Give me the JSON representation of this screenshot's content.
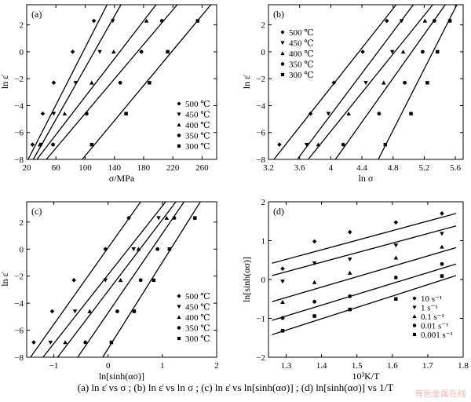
{
  "caption": "(a) ln ε̇ vs σ ; (b) ln ε̇ vs ln σ ; (c) ln ε̇ vs ln[sinh(ασ)] ; (d) ln[sinh(ασ)] vs 1/T",
  "watermark": "有色金属在线",
  "chart_data": [
    {
      "type": "scatter",
      "panel": "(a)",
      "xlabel": "σ/MPa",
      "ylabel": "ln ε̇",
      "xlim": [
        20,
        280
      ],
      "ylim": [
        -8,
        3.5
      ],
      "xticks": [
        20,
        60,
        100,
        140,
        180,
        220,
        260
      ],
      "yticks": [
        -8,
        -6,
        -4,
        -2,
        0,
        2
      ],
      "grid": false,
      "legend_position": "bottom-right",
      "series": [
        {
          "name": "500 ℃",
          "marker": "diamond",
          "x": [
            28,
            42,
            57,
            83,
            112
          ],
          "y": [
            -6.9,
            -4.6,
            -2.3,
            0.0,
            2.3
          ],
          "fit": [
            [
              22,
              -8.0
            ],
            [
              130,
              3.5
            ]
          ]
        },
        {
          "name": "450 ℃",
          "marker": "triangle-down",
          "x": [
            40,
            57,
            87,
            120,
            138
          ],
          "y": [
            -6.9,
            -4.6,
            -2.3,
            0.0,
            2.3
          ],
          "fit": [
            [
              29,
              -8.0
            ],
            [
              149,
              3.5
            ]
          ]
        },
        {
          "name": "400 ℃",
          "marker": "triangle-up",
          "x": [
            38,
            72,
            109,
            139,
            184
          ],
          "y": [
            -6.9,
            -4.6,
            -2.3,
            0.0,
            2.3
          ],
          "fit": [
            [
              34,
              -8.0
            ],
            [
              197,
              3.5
            ]
          ]
        },
        {
          "name": "350 ℃",
          "marker": "circle",
          "x": [
            56,
            102,
            148,
            177,
            205
          ],
          "y": [
            -6.9,
            -4.6,
            -2.3,
            0.0,
            2.3
          ],
          "fit": [
            [
              47,
              -8.0
            ],
            [
              226,
              3.5
            ]
          ]
        },
        {
          "name": "300 ℃",
          "marker": "square",
          "x": [
            109,
            156,
            188,
            213,
            254
          ],
          "y": [
            -6.9,
            -4.6,
            -2.3,
            0.0,
            2.3
          ],
          "fit": [
            [
              96,
              -8.0
            ],
            [
              272,
              3.5
            ]
          ]
        }
      ]
    },
    {
      "type": "scatter",
      "panel": "(b)",
      "xlabel": "ln σ",
      "ylabel": "ln ε̇",
      "xlim": [
        3.2,
        5.7
      ],
      "ylim": [
        -8,
        3.5
      ],
      "xticks": [
        3.2,
        3.6,
        4.0,
        4.4,
        4.8,
        5.2,
        5.6
      ],
      "yticks": [
        -8,
        -6,
        -4,
        -2,
        0,
        2
      ],
      "grid": false,
      "legend_position": "top-left",
      "series": [
        {
          "name": "500 ℃",
          "marker": "diamond",
          "x": [
            3.34,
            3.74,
            4.04,
            4.41,
            4.72
          ],
          "y": [
            -6.9,
            -4.6,
            -2.3,
            0.0,
            2.3
          ],
          "fit": [
            [
              3.27,
              -8.0
            ],
            [
              4.84,
              3.5
            ]
          ]
        },
        {
          "name": "450 ℃",
          "marker": "triangle-down",
          "x": [
            3.69,
            3.97,
            4.45,
            4.79,
            4.91
          ],
          "y": [
            -6.9,
            -4.6,
            -2.3,
            0.0,
            2.3
          ],
          "fit": [
            [
              3.57,
              -8.0
            ],
            [
              5.06,
              3.5
            ]
          ]
        },
        {
          "name": "400 ℃",
          "marker": "triangle-up",
          "x": [
            3.84,
            4.23,
            4.68,
            4.93,
            5.21
          ],
          "y": [
            -6.9,
            -4.6,
            -2.3,
            0.0,
            2.3
          ],
          "fit": [
            [
              3.71,
              -8.0
            ],
            [
              5.31,
              3.5
            ]
          ]
        },
        {
          "name": "350 ℃",
          "marker": "circle",
          "x": [
            4.16,
            4.62,
            4.95,
            5.18,
            5.33
          ],
          "y": [
            -6.9,
            -4.6,
            -2.3,
            0.0,
            2.3
          ],
          "fit": [
            [
              4.06,
              -8.0
            ],
            [
              5.47,
              3.5
            ]
          ]
        },
        {
          "name": "300 ℃",
          "marker": "square",
          "x": [
            4.7,
            5.03,
            5.24,
            5.37,
            5.53
          ],
          "y": [
            -6.9,
            -4.6,
            -2.3,
            0.0,
            2.3
          ],
          "fit": [
            [
              4.61,
              -8.0
            ],
            [
              5.62,
              3.5
            ]
          ]
        }
      ]
    },
    {
      "type": "scatter",
      "panel": "(c)",
      "xlabel": "ln[sinh(ασ)]",
      "ylabel": "ln ε̇",
      "xlim": [
        -1.5,
        2.0
      ],
      "ylim": [
        -8,
        3.5
      ],
      "xticks": [
        -1,
        0,
        1,
        2
      ],
      "yticks": [
        -8,
        -6,
        -4,
        -2,
        0,
        2
      ],
      "grid": false,
      "legend_position": "bottom-right",
      "series": [
        {
          "name": "500 ℃",
          "marker": "diamond",
          "x": [
            -1.37,
            -1.03,
            -0.63,
            -0.05,
            0.38
          ],
          "y": [
            -6.9,
            -4.6,
            -2.3,
            0.0,
            2.3
          ],
          "fit": [
            [
              -1.43,
              -8.0
            ],
            [
              0.6,
              3.5
            ]
          ]
        },
        {
          "name": "450 ℃",
          "marker": "triangle-down",
          "x": [
            -1.06,
            -0.61,
            -0.05,
            0.47,
            0.93
          ],
          "y": [
            -6.9,
            -4.6,
            -2.3,
            0.0,
            2.3
          ],
          "fit": [
            [
              -1.2,
              -8.0
            ],
            [
              1.06,
              3.5
            ]
          ]
        },
        {
          "name": "400 ℃",
          "marker": "triangle-up",
          "x": [
            -0.79,
            -0.34,
            0.23,
            0.56,
            1.08
          ],
          "y": [
            -6.9,
            -4.6,
            -2.3,
            0.0,
            2.3
          ],
          "fit": [
            [
              -0.93,
              -8.0
            ],
            [
              1.25,
              3.5
            ]
          ]
        },
        {
          "name": "350 ℃",
          "marker": "circle",
          "x": [
            -0.42,
            0.17,
            0.6,
            0.91,
            1.22
          ],
          "y": [
            -6.9,
            -4.6,
            -2.3,
            0.0,
            2.3
          ],
          "fit": [
            [
              -0.56,
              -8.0
            ],
            [
              1.4,
              3.5
            ]
          ]
        },
        {
          "name": "300 ℃",
          "marker": "square",
          "x": [
            0.06,
            0.48,
            0.84,
            1.13,
            1.6
          ],
          "y": [
            -6.9,
            -4.6,
            -2.3,
            0.0,
            2.3
          ],
          "fit": [
            [
              -0.1,
              -8.0
            ],
            [
              1.7,
              3.5
            ]
          ]
        }
      ]
    },
    {
      "type": "scatter",
      "panel": "(d)",
      "xlabel": "10³K/T",
      "ylabel": "ln[sinh(ασ)]",
      "xlim": [
        1.25,
        1.8
      ],
      "ylim": [
        -2.0,
        2.0
      ],
      "xticks": [
        1.3,
        1.4,
        1.5,
        1.6,
        1.7,
        1.8
      ],
      "yticks": [
        -2,
        -1,
        0,
        1,
        2
      ],
      "grid": false,
      "legend_position": "bottom-right",
      "series": [
        {
          "name": "10 s⁻¹",
          "marker": "diamond",
          "x": [
            1.29,
            1.38,
            1.48,
            1.61,
            1.74
          ],
          "y": [
            0.28,
            0.98,
            1.22,
            1.47,
            1.7
          ],
          "fit": [
            [
              1.26,
              0.42
            ],
            [
              1.78,
              1.7
            ]
          ]
        },
        {
          "name": "1 s⁻¹",
          "marker": "triangle-down",
          "x": [
            1.29,
            1.38,
            1.48,
            1.61,
            1.74
          ],
          "y": [
            -0.05,
            0.42,
            0.52,
            0.88,
            1.18
          ],
          "fit": [
            [
              1.26,
              0.1
            ],
            [
              1.78,
              1.38
            ]
          ]
        },
        {
          "name": "0.1 s⁻¹",
          "marker": "triangle-up",
          "x": [
            1.29,
            1.38,
            1.48,
            1.61,
            1.74
          ],
          "y": [
            -0.58,
            -0.07,
            0.17,
            0.56,
            0.84
          ],
          "fit": [
            [
              1.26,
              -0.57
            ],
            [
              1.78,
              0.82
            ]
          ]
        },
        {
          "name": "0.01 s⁻¹",
          "marker": "circle",
          "x": [
            1.29,
            1.38,
            1.48,
            1.61,
            1.74
          ],
          "y": [
            -0.99,
            -0.57,
            -0.43,
            0.05,
            0.4
          ],
          "fit": [
            [
              1.26,
              -1.05
            ],
            [
              1.78,
              0.4
            ]
          ]
        },
        {
          "name": "0.001 s⁻¹",
          "marker": "square",
          "x": [
            1.29,
            1.38,
            1.48,
            1.61,
            1.74
          ],
          "y": [
            -1.32,
            -0.94,
            -0.77,
            -0.5,
            0.09
          ],
          "fit": [
            [
              1.26,
              -1.42
            ],
            [
              1.78,
              0.1
            ]
          ]
        }
      ]
    }
  ]
}
